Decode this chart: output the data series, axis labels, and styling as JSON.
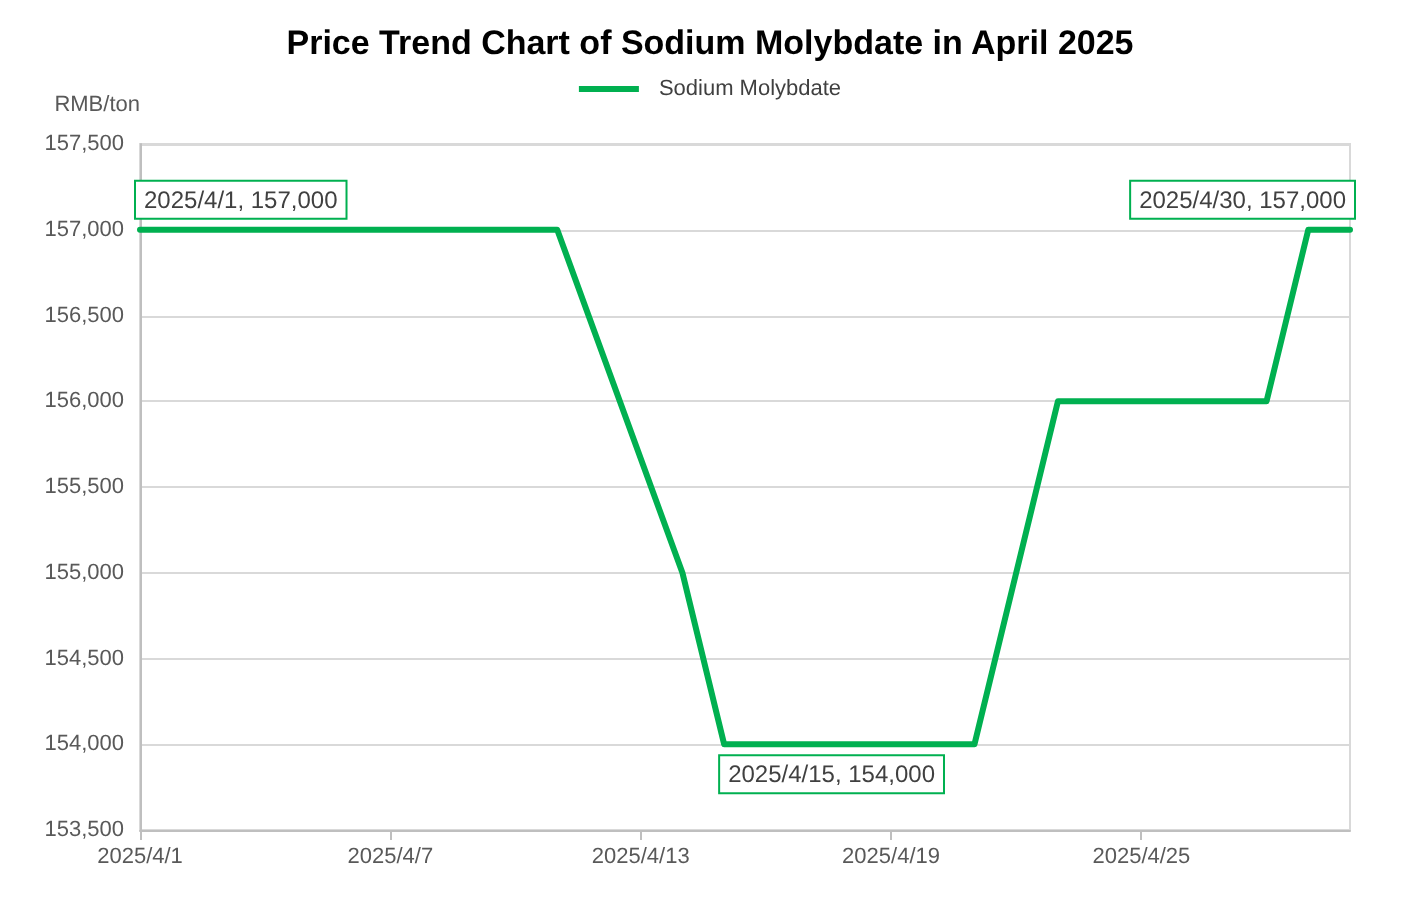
{
  "chart_data": {
    "type": "line",
    "title": "Price Trend Chart of Sodium Molybdate in April 2025",
    "ylabel": "RMB/ton",
    "series": [
      {
        "name": "Sodium Molybdate",
        "color": "#00b050",
        "x": [
          "2025-04-01",
          "2025-04-11",
          "2025-04-14",
          "2025-04-15",
          "2025-04-21",
          "2025-04-23",
          "2025-04-28",
          "2025-04-29",
          "2025-04-30"
        ],
        "values": [
          157000,
          157000,
          155000,
          154000,
          154000,
          156000,
          156000,
          157000,
          157000
        ]
      }
    ],
    "xlim": [
      "2025-04-01",
      "2025-04-30"
    ],
    "xticks": [
      {
        "value": "2025-04-01",
        "label": "2025/4/1"
      },
      {
        "value": "2025-04-07",
        "label": "2025/4/7"
      },
      {
        "value": "2025-04-13",
        "label": "2025/4/13"
      },
      {
        "value": "2025-04-19",
        "label": "2025/4/19"
      },
      {
        "value": "2025-04-25",
        "label": "2025/4/25"
      }
    ],
    "ylim": [
      153500,
      157500
    ],
    "yticks": [
      {
        "value": 153500,
        "label": "153,500"
      },
      {
        "value": 154000,
        "label": "154,000"
      },
      {
        "value": 154500,
        "label": "154,500"
      },
      {
        "value": 155000,
        "label": "155,000"
      },
      {
        "value": 155500,
        "label": "155,500"
      },
      {
        "value": 156000,
        "label": "156,000"
      },
      {
        "value": 156500,
        "label": "156,500"
      },
      {
        "value": 157000,
        "label": "157,000"
      },
      {
        "value": 157500,
        "label": "157,500"
      }
    ],
    "annotations": [
      {
        "text": "2025/4/1, 157,000",
        "x": "2025-04-01",
        "y": 157000
      },
      {
        "text": "2025/4/15, 154,000",
        "x": "2025-04-15",
        "y": 154000
      },
      {
        "text": "2025/4/30, 157,000",
        "x": "2025-04-30",
        "y": 157000
      }
    ],
    "legend": "top",
    "grid": "y",
    "marker": "none",
    "line_style": "solid"
  }
}
